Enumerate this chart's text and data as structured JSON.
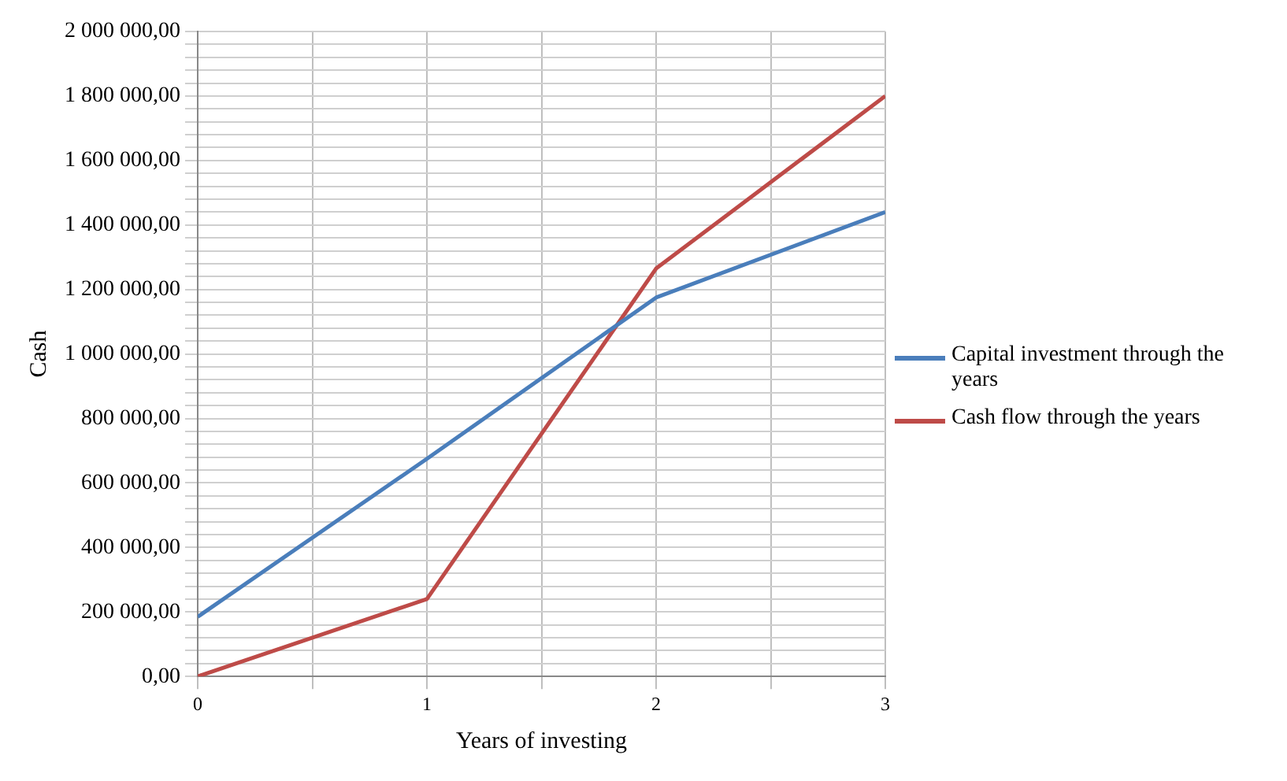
{
  "chart_data": {
    "type": "line",
    "xlabel": "Years of investing",
    "ylabel": "Cash",
    "x": [
      0,
      1,
      2,
      3
    ],
    "series": [
      {
        "name": "Capital investment through the years",
        "color": "#4a7ebb",
        "values": [
          185000,
          675000,
          1175000,
          1440000
        ]
      },
      {
        "name": "Cash flow through the years",
        "color": "#be4b48",
        "values": [
          0,
          240000,
          1265000,
          1800000
        ]
      }
    ],
    "xlim": [
      0,
      3
    ],
    "xticks": [
      0,
      {
        "value": 0.5,
        "label": null
      },
      1,
      {
        "value": 1.5,
        "label": null
      },
      2,
      {
        "value": 2.5,
        "label": null
      },
      3
    ],
    "ylim": [
      0,
      2000000
    ],
    "yticks": [
      {
        "value": 0,
        "label": "0,00"
      },
      {
        "value": 40000,
        "label": null
      },
      {
        "value": 80000,
        "label": null
      },
      {
        "value": 120000,
        "label": null
      },
      {
        "value": 160000,
        "label": null
      },
      {
        "value": 200000,
        "label": "200 000,00"
      },
      {
        "value": 240000,
        "label": null
      },
      {
        "value": 280000,
        "label": null
      },
      {
        "value": 320000,
        "label": null
      },
      {
        "value": 360000,
        "label": null
      },
      {
        "value": 400000,
        "label": "400 000,00"
      },
      {
        "value": 440000,
        "label": null
      },
      {
        "value": 480000,
        "label": null
      },
      {
        "value": 520000,
        "label": null
      },
      {
        "value": 560000,
        "label": null
      },
      {
        "value": 600000,
        "label": "600 000,00"
      },
      {
        "value": 640000,
        "label": null
      },
      {
        "value": 680000,
        "label": null
      },
      {
        "value": 720000,
        "label": null
      },
      {
        "value": 760000,
        "label": null
      },
      {
        "value": 800000,
        "label": "800 000,00"
      },
      {
        "value": 840000,
        "label": null
      },
      {
        "value": 880000,
        "label": null
      },
      {
        "value": 920000,
        "label": null
      },
      {
        "value": 960000,
        "label": null
      },
      {
        "value": 1000000,
        "label": "1 000 000,00"
      },
      {
        "value": 1040000,
        "label": null
      },
      {
        "value": 1080000,
        "label": null
      },
      {
        "value": 1120000,
        "label": null
      },
      {
        "value": 1160000,
        "label": null
      },
      {
        "value": 1200000,
        "label": "1 200 000,00"
      },
      {
        "value": 1240000,
        "label": null
      },
      {
        "value": 1280000,
        "label": null
      },
      {
        "value": 1320000,
        "label": null
      },
      {
        "value": 1360000,
        "label": null
      },
      {
        "value": 1400000,
        "label": "1 400 000,00"
      },
      {
        "value": 1440000,
        "label": null
      },
      {
        "value": 1480000,
        "label": null
      },
      {
        "value": 1520000,
        "label": null
      },
      {
        "value": 1560000,
        "label": null
      },
      {
        "value": 1600000,
        "label": "1 600 000,00"
      },
      {
        "value": 1640000,
        "label": null
      },
      {
        "value": 1680000,
        "label": null
      },
      {
        "value": 1720000,
        "label": null
      },
      {
        "value": 1760000,
        "label": null
      },
      {
        "value": 1800000,
        "label": "1 800 000,00"
      },
      {
        "value": 1840000,
        "label": null
      },
      {
        "value": 1880000,
        "label": null
      },
      {
        "value": 1920000,
        "label": null
      },
      {
        "value": 1960000,
        "label": null
      },
      {
        "value": 2000000,
        "label": "2 000 000,00"
      }
    ],
    "grid": true,
    "legend": "right",
    "marker": "none",
    "line_style": "solid"
  }
}
